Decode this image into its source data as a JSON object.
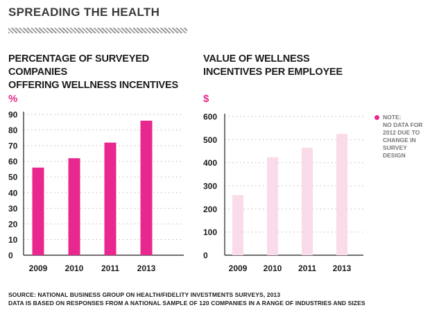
{
  "page": {
    "title": "SPREADING THE HEALTH"
  },
  "chart_data": [
    {
      "type": "bar",
      "title": "PERCENTAGE OF SURVEYED COMPANIES\nOFFERING WELLNESS INCENTIVES",
      "ylabel": "%",
      "categories": [
        "2009",
        "2010",
        "2011",
        "2013"
      ],
      "values": [
        56,
        62,
        72,
        86
      ],
      "ylim": [
        0,
        90
      ],
      "yticks": [
        0,
        10,
        20,
        30,
        40,
        50,
        60,
        70,
        80,
        90
      ],
      "grid": true,
      "bar_color": "#e8288f"
    },
    {
      "type": "bar",
      "title": "VALUE OF WELLNESS\nINCENTIVES PER EMPLOYEE",
      "ylabel": "$",
      "categories": [
        "2009",
        "2010",
        "2011",
        "2013"
      ],
      "values": [
        260,
        424,
        465,
        525
      ],
      "ylim": [
        0,
        600
      ],
      "yticks": [
        0,
        100,
        200,
        300,
        400,
        500,
        600
      ],
      "grid": true,
      "bar_color": "#fadbe9"
    }
  ],
  "note": {
    "text": "NOTE:\nNO DATA FOR\n2012 DUE TO\nCHANGE IN\nSURVEY\nDESIGN",
    "dot_color": "#e8288f"
  },
  "source": {
    "line1": "SOURCE: NATIONAL BUSINESS GROUP ON HEALTH/FIDELITY INVESTMENTS SURVEYS, 2013",
    "line2": "DATA IS BASED ON RESPONSES FROM A NATIONAL SAMPLE OF 120 COMPANIES IN A RANGE OF INDUSTRIES AND SIZES"
  }
}
